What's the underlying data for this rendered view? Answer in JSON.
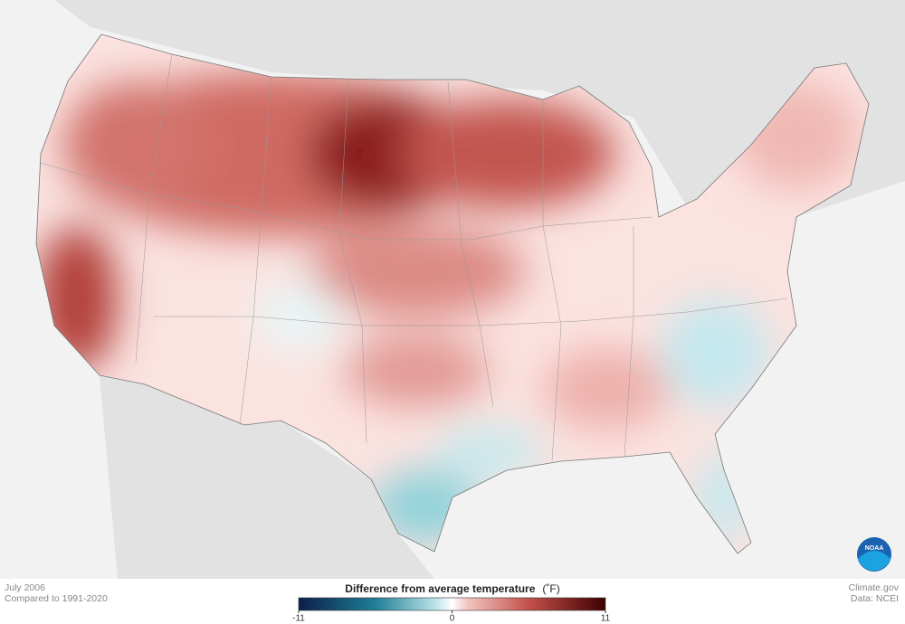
{
  "map": {
    "date": "July 2006",
    "baseline": "Compared to 1991-2020",
    "legend": {
      "title": "Difference from average temperature",
      "unit": "(˚F)",
      "lim": [
        -11,
        11
      ],
      "ticks": [
        -11,
        0,
        11
      ]
    },
    "credit": "Climate.gov",
    "source": "Data: NCEI",
    "logo": "NOAA"
  }
}
